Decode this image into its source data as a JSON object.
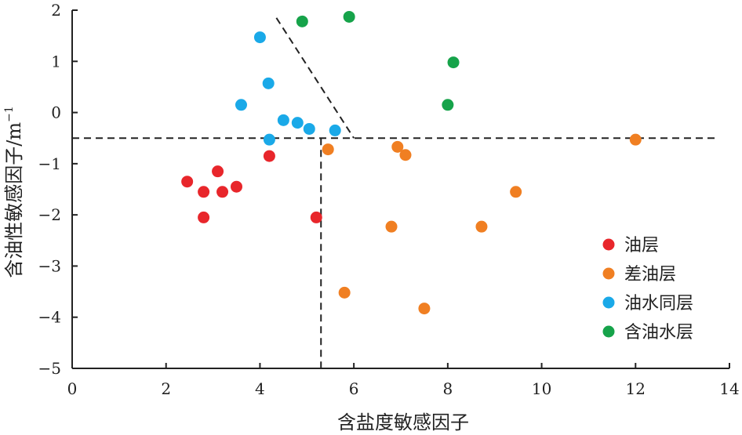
{
  "chart_data": {
    "type": "scatter",
    "xlabel": "含盐度敏感因子",
    "ylabel": "含油性敏感因子/m",
    "ylabel_superscript": "−1",
    "xlim": [
      0,
      14
    ],
    "ylim": [
      -5,
      2
    ],
    "x_ticks": [
      "0",
      "2",
      "4",
      "6",
      "8",
      "10",
      "12",
      "14"
    ],
    "y_ticks": [
      "2",
      "1",
      "0",
      "−1",
      "−2",
      "−3",
      "−4",
      "−5"
    ],
    "grid": false,
    "legend_position": "bottom-right",
    "series": [
      {
        "name": "油层",
        "color": "#e8262b",
        "points": [
          [
            2.45,
            -1.35
          ],
          [
            2.8,
            -1.55
          ],
          [
            2.8,
            -2.05
          ],
          [
            3.1,
            -1.15
          ],
          [
            3.2,
            -1.55
          ],
          [
            3.5,
            -1.45
          ],
          [
            4.2,
            -0.85
          ],
          [
            5.2,
            -2.05
          ]
        ]
      },
      {
        "name": "差油层",
        "color": "#f07f22",
        "points": [
          [
            5.45,
            -0.72
          ],
          [
            5.8,
            -3.52
          ],
          [
            6.8,
            -2.23
          ],
          [
            6.93,
            -0.67
          ],
          [
            7.1,
            -0.83
          ],
          [
            7.5,
            -3.83
          ],
          [
            8.72,
            -2.23
          ],
          [
            9.45,
            -1.55
          ],
          [
            12.0,
            -0.53
          ]
        ]
      },
      {
        "name": "油水同层",
        "color": "#1aa9e8",
        "points": [
          [
            3.6,
            0.15
          ],
          [
            4.0,
            1.47
          ],
          [
            4.18,
            0.57
          ],
          [
            4.2,
            -0.53
          ],
          [
            4.5,
            -0.15
          ],
          [
            4.8,
            -0.2
          ],
          [
            5.05,
            -0.32
          ],
          [
            5.6,
            -0.35
          ]
        ]
      },
      {
        "name": "含油水层",
        "color": "#16a34a",
        "points": [
          [
            4.9,
            1.78
          ],
          [
            5.9,
            1.87
          ],
          [
            8.0,
            0.15
          ],
          [
            8.12,
            0.98
          ]
        ]
      }
    ],
    "reference_lines": [
      {
        "style": "dashed",
        "from": [
          0,
          -0.5
        ],
        "to": [
          13.7,
          -0.5
        ]
      },
      {
        "style": "dashed",
        "from": [
          5.3,
          -0.5
        ],
        "to": [
          5.3,
          -5
        ]
      },
      {
        "style": "dashed",
        "from": [
          4.35,
          1.85
        ],
        "to": [
          6.0,
          -0.5
        ]
      }
    ]
  }
}
